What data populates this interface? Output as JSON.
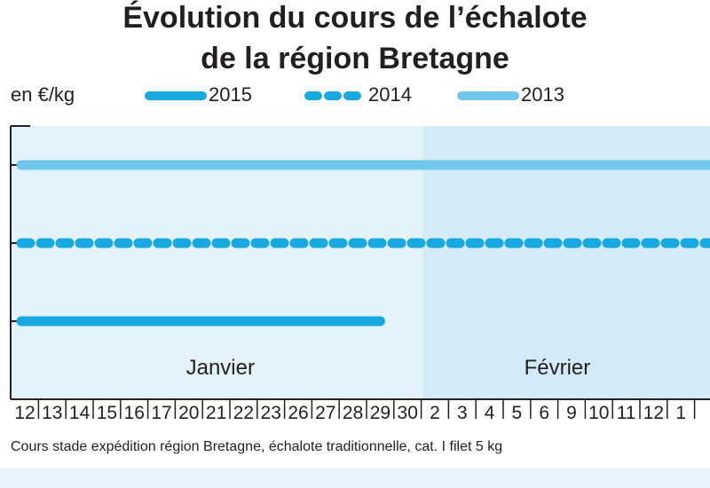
{
  "header": {
    "title_line1": "Évolution du cours de l’échalote",
    "title_line2": "de la région Bretagne"
  },
  "chart_data": {
    "type": "line",
    "title": "Évolution du cours de l’échalote de la région Bretagne",
    "ylabel": "en €/kg",
    "x": [
      "12",
      "13",
      "14",
      "15",
      "16",
      "17",
      "20",
      "21",
      "22",
      "23",
      "26",
      "27",
      "28",
      "29",
      "30",
      "2",
      "3",
      "4",
      "5",
      "6",
      "9",
      "10",
      "11",
      "12",
      "1"
    ],
    "months": [
      {
        "label": "Janvier"
      },
      {
        "label": "Février"
      }
    ],
    "series": [
      {
        "name": "2015",
        "style": "solid",
        "color": "#17a9df",
        "values": [
          1,
          1,
          1,
          1,
          1,
          1,
          1,
          1,
          1,
          1,
          1,
          1,
          1,
          1,
          null,
          null,
          null,
          null,
          null,
          null,
          null,
          null,
          null,
          null,
          null
        ]
      },
      {
        "name": "2014",
        "style": "dashed",
        "color": "#17a9df",
        "values": [
          2,
          2,
          2,
          2,
          2,
          2,
          2,
          2,
          2,
          2,
          2,
          2,
          2,
          2,
          2,
          2,
          2,
          2,
          2,
          2,
          2,
          2,
          2,
          2,
          2
        ]
      },
      {
        "name": "2013",
        "style": "solid",
        "color": "#6fc8ec",
        "values": [
          3,
          3,
          3,
          3,
          3,
          3,
          3,
          3,
          3,
          3,
          3,
          3,
          3,
          3,
          3,
          3,
          3,
          3,
          3,
          3,
          3,
          3,
          3,
          3,
          3
        ]
      }
    ],
    "ylim": [
      0,
      3.5
    ],
    "grid": false,
    "legend_position": "top"
  },
  "footnote": "Cours stade expédition région Bretagne, échalote traditionnelle, cat. I filet 5 kg",
  "colors": {
    "plot_bg_left": "#e3f2fb",
    "plot_bg_right": "#d3ebf8",
    "axis": "#231f20"
  }
}
